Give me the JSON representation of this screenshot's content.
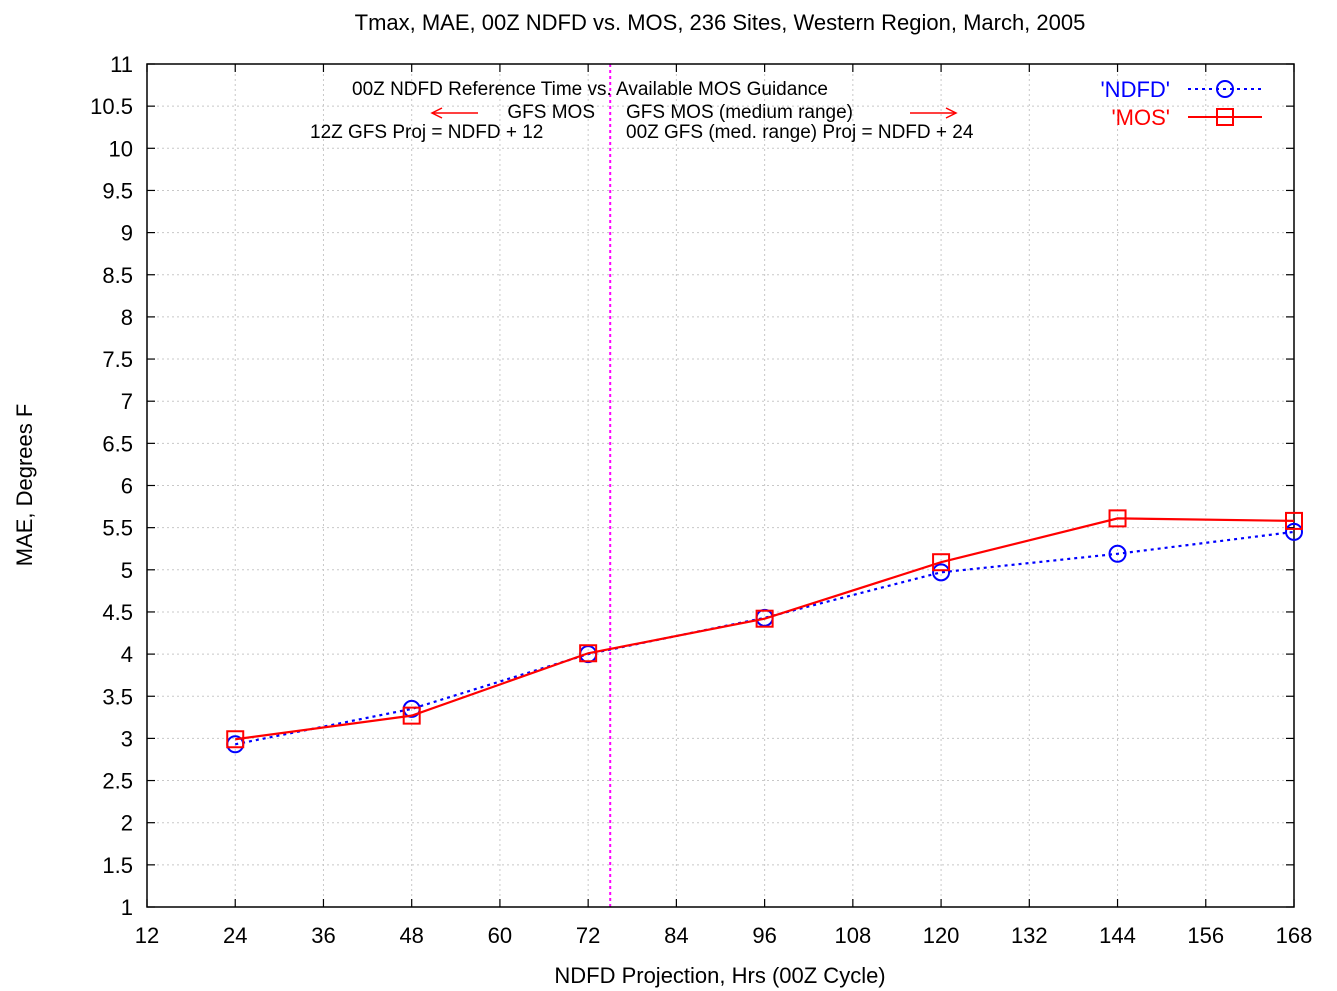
{
  "chart_data": {
    "type": "line",
    "title": "Tmax, MAE, 00Z NDFD vs. MOS, 236 Sites, Western Region, March, 2005",
    "xlabel": "NDFD Projection, Hrs (00Z Cycle)",
    "ylabel": "MAE, Degrees F",
    "xlim": [
      12,
      168
    ],
    "ylim": [
      1,
      11
    ],
    "xticks": [
      "12",
      "24",
      "36",
      "48",
      "60",
      "72",
      "84",
      "96",
      "108",
      "120",
      "132",
      "144",
      "156",
      "168"
    ],
    "yticks": [
      "1",
      "1.5",
      "2",
      "2.5",
      "3",
      "3.5",
      "4",
      "4.5",
      "5",
      "5.5",
      "6",
      "6.5",
      "7",
      "7.5",
      "8",
      "8.5",
      "9",
      "9.5",
      "10",
      "10.5",
      "11"
    ],
    "x": [
      24,
      48,
      72,
      96,
      120,
      144,
      168
    ],
    "series": [
      {
        "name": "'NDFD'",
        "values": [
          2.93,
          3.35,
          4.0,
          4.43,
          4.97,
          5.19,
          5.45
        ],
        "color": "#0000ff",
        "marker": "circle",
        "line": "dotted"
      },
      {
        "name": "'MOS'",
        "values": [
          2.99,
          3.27,
          4.01,
          4.42,
          5.09,
          5.61,
          5.58
        ],
        "color": "#ff0000",
        "marker": "square",
        "line": "solid"
      }
    ],
    "divider": {
      "x": 75,
      "color": "#ff00ff",
      "style": "dotted"
    },
    "annotations": {
      "line1": "00Z NDFD Reference Time vs. Available MOS Guidance",
      "left_label": "GFS MOS",
      "right_label": "GFS MOS (medium range)",
      "left_proj": "12Z GFS Proj = NDFD + 12",
      "right_proj": "00Z GFS (med. range) Proj = NDFD + 24"
    },
    "grid": true,
    "legend_position": "top-right"
  }
}
